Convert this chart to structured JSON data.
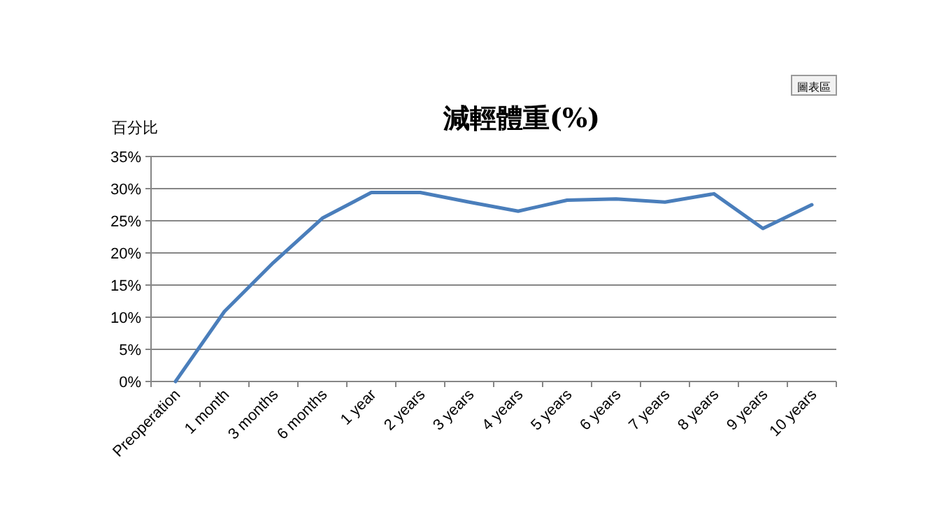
{
  "chart_data": {
    "type": "line",
    "title": "減輕體重(%)",
    "ylabel": "百分比",
    "annotations": [
      "圖表區"
    ],
    "categories": [
      "Preoperation",
      "1 month",
      "3 months",
      "6 months",
      "1 year",
      "2 years",
      "3 years",
      "4 years",
      "5 years",
      "6 years",
      "7 years",
      "8 years",
      "9 years",
      "10 years"
    ],
    "series": [
      {
        "color": "#4a7ebb",
        "values": [
          0,
          10.9,
          18.5,
          25.4,
          29.4,
          29.4,
          27.9,
          26.5,
          28.2,
          28.4,
          27.9,
          29.2,
          23.8,
          27.5
        ]
      }
    ],
    "ylim": [
      0,
      35
    ],
    "yticks": [
      {
        "value": 0,
        "label": "0%"
      },
      {
        "value": 5,
        "label": "5%"
      },
      {
        "value": 10,
        "label": "10%"
      },
      {
        "value": 15,
        "label": "15%"
      },
      {
        "value": 20,
        "label": "20%"
      },
      {
        "value": 25,
        "label": "25%"
      },
      {
        "value": 30,
        "label": "30%"
      },
      {
        "value": 35,
        "label": "35%"
      }
    ],
    "grid": "y",
    "marker": "none",
    "line_style": "solid"
  }
}
